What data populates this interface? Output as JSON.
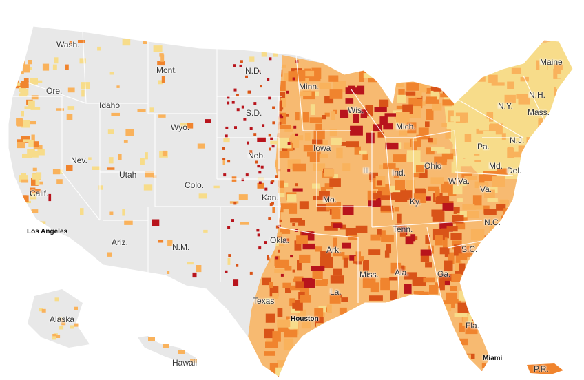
{
  "map": {
    "state_labels": {
      "wash": "Wash.",
      "ore": "Ore.",
      "idaho": "Idaho",
      "mont": "Mont.",
      "wyo": "Wyo.",
      "nev": "Nev.",
      "calif": "Calif.",
      "utah": "Utah",
      "colo": "Colo.",
      "ariz": "Ariz.",
      "nm": "N.M.",
      "nd": "N.D.",
      "sd": "S.D.",
      "neb": "Neb.",
      "kan": "Kan.",
      "okla": "Okla.",
      "texas": "Texas",
      "minn": "Minn.",
      "iowa": "Iowa",
      "mo": "Mo.",
      "ark": "Ark.",
      "la": "La.",
      "wis": "Wis.",
      "ill": "Ill.",
      "mich": "Mich.",
      "ind": "Ind.",
      "ohio": "Ohio",
      "ky": "Ky.",
      "tenn": "Tenn.",
      "miss": "Miss.",
      "ala": "Ala.",
      "ga": "Ga.",
      "fla": "Fla.",
      "sc": "S.C.",
      "nc": "N.C.",
      "va": "Va.",
      "wva": "W.Va.",
      "pa": "Pa.",
      "ny": "N.Y.",
      "md": "Md.",
      "del": "Del.",
      "nj": "N.J.",
      "mass": "Mass.",
      "nh": "N.H.",
      "maine": "Maine",
      "alaska": "Alaska",
      "hawaii": "Hawaii",
      "pr": "P.R."
    },
    "city_labels": {
      "los_angeles": "Los Angeles",
      "houston": "Houston",
      "miami": "Miami"
    },
    "colors": {
      "no_data": "#e8e8e8",
      "level_1": "#f7dc8a",
      "level_2": "#f9b25c",
      "level_3": "#f0842e",
      "level_4": "#d95418",
      "level_5": "#b8141c",
      "border": "#ffffff"
    },
    "footer_text": ""
  }
}
